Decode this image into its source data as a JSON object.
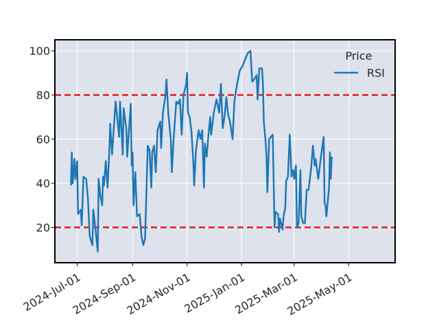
{
  "chart_data": {
    "type": "line",
    "title": "",
    "xlabel": "",
    "ylabel": "",
    "xlim": [
      "2024-06-06",
      "2025-06-22"
    ],
    "ylim": [
      4,
      105
    ],
    "grid": true,
    "legend": {
      "title": "Price",
      "placement": "top-right",
      "entries": [
        "RSI"
      ]
    },
    "yticks": [
      20,
      40,
      60,
      80,
      100
    ],
    "xticks": [
      "2024-Jul-01",
      "2024-Sep-01",
      "2024-Nov-01",
      "2025-Jan-01",
      "2025-Mar-01",
      "2025-May-01"
    ],
    "xtick_dates": [
      "2024-07-01",
      "2024-09-01",
      "2024-11-01",
      "2025-01-01",
      "2025-03-01",
      "2025-05-01"
    ],
    "reference_lines": [
      {
        "y": 80,
        "style": "dashed",
        "color": "#e41a1c"
      },
      {
        "y": 20,
        "style": "dashed",
        "color": "#e41a1c"
      }
    ],
    "series": [
      {
        "name": "RSI",
        "color": "#1f77b4",
        "points": [
          [
            "2024-06-24",
            39
          ],
          [
            "2024-06-25",
            54
          ],
          [
            "2024-06-26",
            40
          ],
          [
            "2024-06-28",
            51
          ],
          [
            "2024-06-29",
            42
          ],
          [
            "2024-07-01",
            50
          ],
          [
            "2024-07-02",
            26
          ],
          [
            "2024-07-05",
            28
          ],
          [
            "2024-07-06",
            21
          ],
          [
            "2024-07-08",
            43
          ],
          [
            "2024-07-11",
            42
          ],
          [
            "2024-07-13",
            33
          ],
          [
            "2024-07-15",
            16
          ],
          [
            "2024-07-18",
            12
          ],
          [
            "2024-07-19",
            28
          ],
          [
            "2024-07-21",
            21
          ],
          [
            "2024-07-24",
            9
          ],
          [
            "2024-07-25",
            42
          ],
          [
            "2024-07-27",
            34
          ],
          [
            "2024-07-29",
            30
          ],
          [
            "2024-07-30",
            43
          ],
          [
            "2024-07-31",
            39
          ],
          [
            "2024-08-02",
            50
          ],
          [
            "2024-08-04",
            38
          ],
          [
            "2024-08-06",
            55
          ],
          [
            "2024-08-07",
            67
          ],
          [
            "2024-08-09",
            53
          ],
          [
            "2024-08-13",
            77
          ],
          [
            "2024-08-17",
            61
          ],
          [
            "2024-08-18",
            77
          ],
          [
            "2024-08-21",
            53
          ],
          [
            "2024-08-22",
            74
          ],
          [
            "2024-08-25",
            65
          ],
          [
            "2024-08-26",
            52
          ],
          [
            "2024-08-30",
            76
          ],
          [
            "2024-08-31",
            48
          ],
          [
            "2024-09-01",
            54
          ],
          [
            "2024-09-02",
            30
          ],
          [
            "2024-09-04",
            45
          ],
          [
            "2024-09-06",
            25
          ],
          [
            "2024-09-09",
            26
          ],
          [
            "2024-09-11",
            16
          ],
          [
            "2024-09-13",
            12
          ],
          [
            "2024-09-15",
            15
          ],
          [
            "2024-09-18",
            57
          ],
          [
            "2024-09-20",
            55
          ],
          [
            "2024-09-22",
            38
          ],
          [
            "2024-09-23",
            54
          ],
          [
            "2024-09-25",
            57
          ],
          [
            "2024-09-27",
            45
          ],
          [
            "2024-09-29",
            64
          ],
          [
            "2024-10-02",
            68
          ],
          [
            "2024-10-03",
            56
          ],
          [
            "2024-10-05",
            72
          ],
          [
            "2024-10-08",
            80
          ],
          [
            "2024-10-09",
            87
          ],
          [
            "2024-10-11",
            72
          ],
          [
            "2024-10-14",
            59
          ],
          [
            "2024-10-15",
            45
          ],
          [
            "2024-10-17",
            60
          ],
          [
            "2024-10-20",
            77
          ],
          [
            "2024-10-22",
            76
          ],
          [
            "2024-10-24",
            78
          ],
          [
            "2024-10-26",
            62
          ],
          [
            "2024-10-28",
            80
          ],
          [
            "2024-10-31",
            85
          ],
          [
            "2024-11-01",
            90
          ],
          [
            "2024-11-02",
            72
          ],
          [
            "2024-11-04",
            70
          ],
          [
            "2024-11-06",
            63
          ],
          [
            "2024-11-08",
            50
          ],
          [
            "2024-11-09",
            39
          ],
          [
            "2024-11-11",
            55
          ],
          [
            "2024-11-14",
            64
          ],
          [
            "2024-11-16",
            60
          ],
          [
            "2024-11-18",
            64
          ],
          [
            "2024-11-20",
            38
          ],
          [
            "2024-11-21",
            58
          ],
          [
            "2024-11-23",
            52
          ],
          [
            "2024-11-25",
            62
          ],
          [
            "2024-11-27",
            70
          ],
          [
            "2024-11-28",
            62
          ],
          [
            "2024-12-01",
            72
          ],
          [
            "2024-12-04",
            78
          ],
          [
            "2024-12-07",
            72
          ],
          [
            "2024-12-09",
            85
          ],
          [
            "2024-12-11",
            65
          ],
          [
            "2024-12-13",
            70
          ],
          [
            "2024-12-15",
            79
          ],
          [
            "2024-12-17",
            71
          ],
          [
            "2024-12-19",
            68
          ],
          [
            "2024-12-22",
            60
          ],
          [
            "2024-12-24",
            77
          ],
          [
            "2024-12-27",
            85
          ],
          [
            "2024-12-30",
            91
          ],
          [
            "2025-01-02",
            93
          ],
          [
            "2025-01-05",
            96
          ],
          [
            "2025-01-08",
            99
          ],
          [
            "2025-01-11",
            100
          ],
          [
            "2025-01-13",
            86
          ],
          [
            "2025-01-15",
            87
          ],
          [
            "2025-01-18",
            89
          ],
          [
            "2025-01-19",
            78
          ],
          [
            "2025-01-21",
            92
          ],
          [
            "2025-01-24",
            92
          ],
          [
            "2025-01-25",
            85
          ],
          [
            "2025-01-26",
            68
          ],
          [
            "2025-01-28",
            59
          ],
          [
            "2025-01-29",
            52
          ],
          [
            "2025-01-30",
            36
          ],
          [
            "2025-02-01",
            60
          ],
          [
            "2025-02-03",
            61
          ],
          [
            "2025-02-05",
            62
          ],
          [
            "2025-02-07",
            20
          ],
          [
            "2025-02-08",
            27
          ],
          [
            "2025-02-11",
            26
          ],
          [
            "2025-02-12",
            18
          ],
          [
            "2025-02-13",
            24
          ],
          [
            "2025-02-16",
            19
          ],
          [
            "2025-02-17",
            25
          ],
          [
            "2025-02-19",
            29
          ],
          [
            "2025-02-20",
            41
          ],
          [
            "2025-02-22",
            43
          ],
          [
            "2025-02-24",
            62
          ],
          [
            "2025-02-26",
            43
          ],
          [
            "2025-02-28",
            46
          ],
          [
            "2025-03-01",
            42
          ],
          [
            "2025-03-03",
            48
          ],
          [
            "2025-03-04",
            20
          ],
          [
            "2025-03-06",
            22
          ],
          [
            "2025-03-08",
            46
          ],
          [
            "2025-03-09",
            25
          ],
          [
            "2025-03-11",
            22
          ],
          [
            "2025-03-13",
            22
          ],
          [
            "2025-03-15",
            37
          ],
          [
            "2025-03-17",
            37
          ],
          [
            "2025-03-18",
            40
          ],
          [
            "2025-03-20",
            47
          ],
          [
            "2025-03-22",
            57
          ],
          [
            "2025-03-24",
            48
          ],
          [
            "2025-03-25",
            51
          ],
          [
            "2025-03-28",
            42
          ],
          [
            "2025-03-31",
            52
          ],
          [
            "2025-04-03",
            61
          ],
          [
            "2025-04-04",
            31
          ],
          [
            "2025-04-05",
            30
          ],
          [
            "2025-04-06",
            25
          ],
          [
            "2025-04-09",
            38
          ],
          [
            "2025-04-10",
            54
          ],
          [
            "2025-04-11",
            42
          ],
          [
            "2025-04-12",
            52
          ]
        ]
      }
    ]
  }
}
